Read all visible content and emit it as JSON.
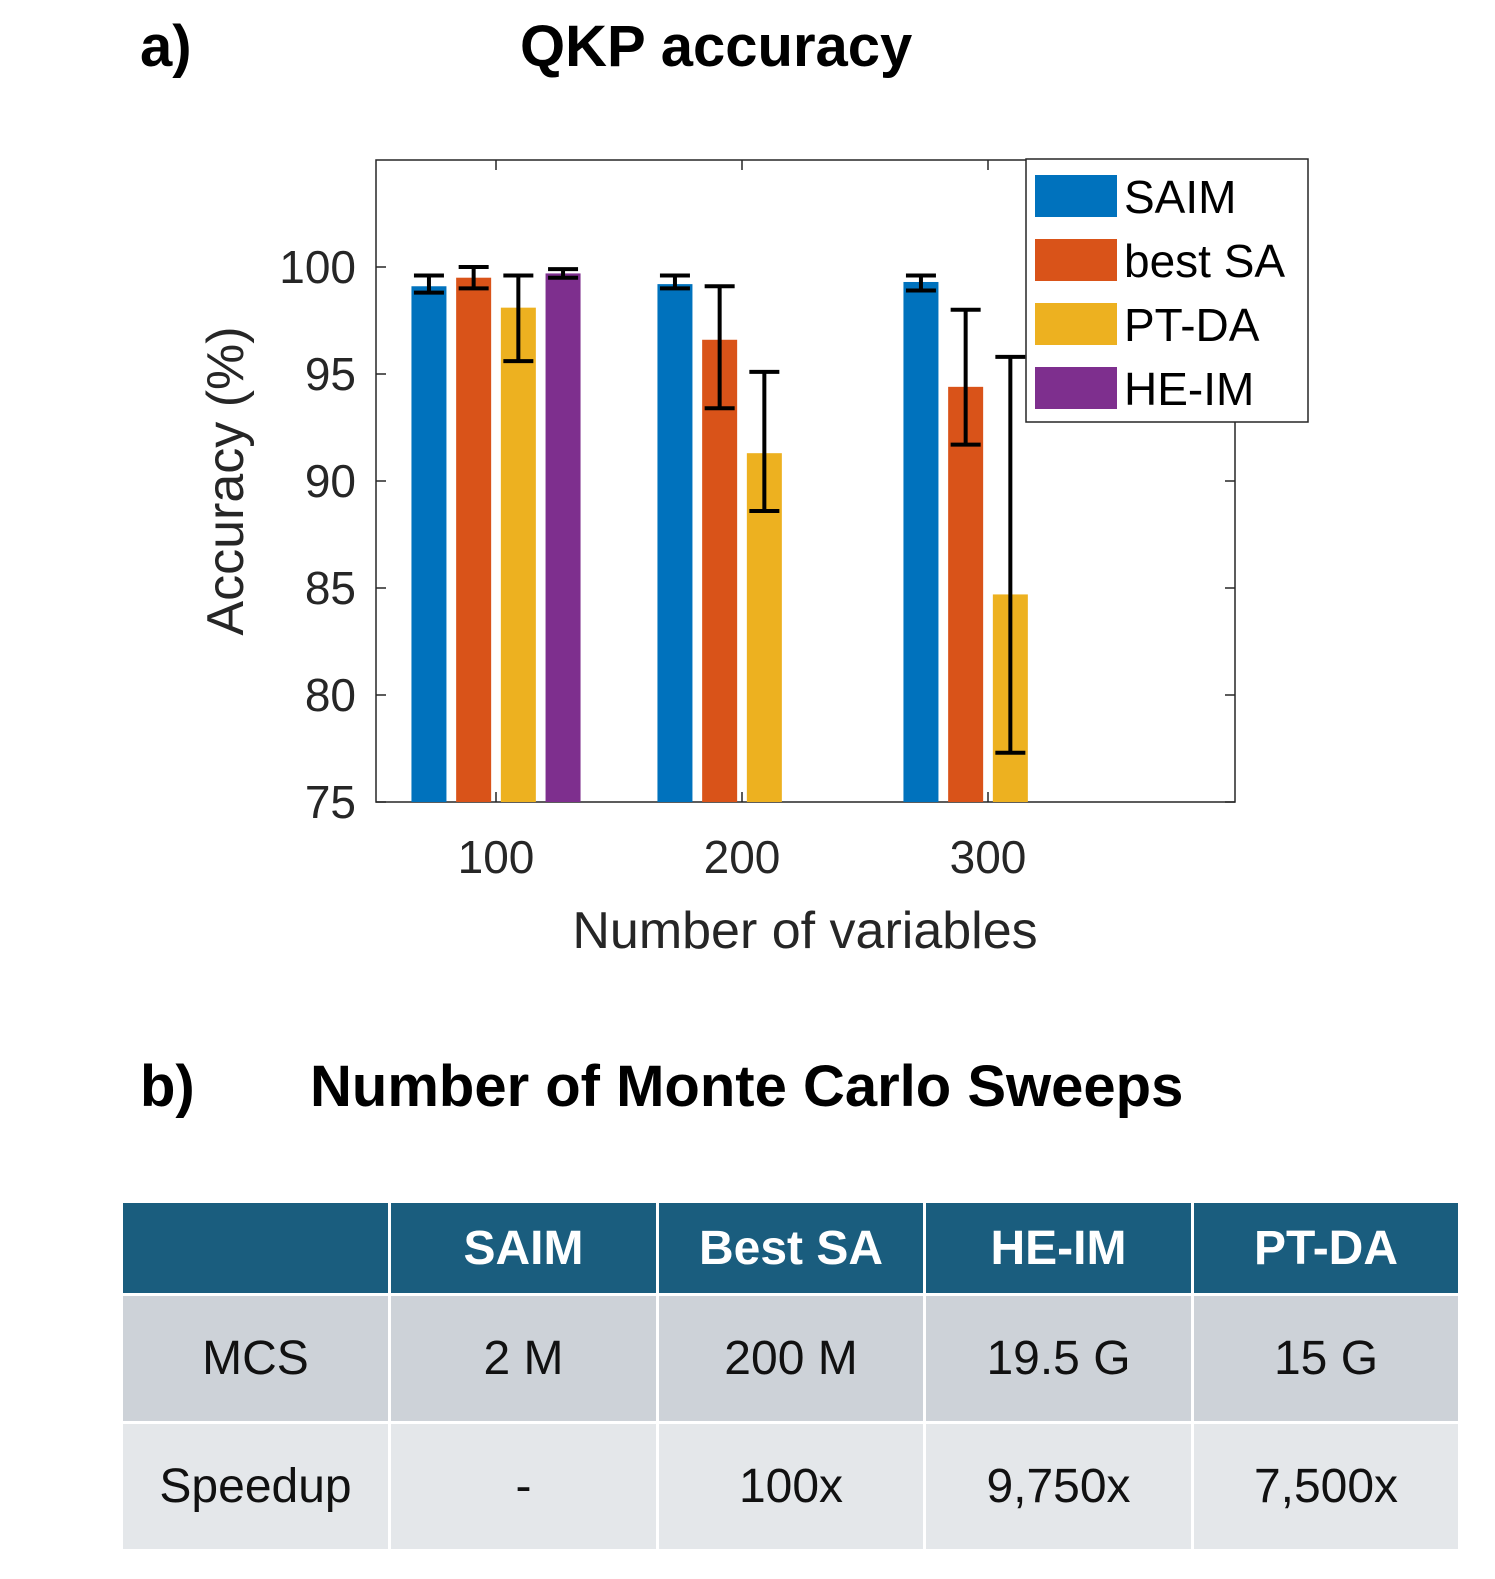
{
  "panel_a": {
    "label": "a)",
    "title": "QKP accuracy"
  },
  "panel_b": {
    "label": "b)",
    "title": "Number of Monte Carlo Sweeps"
  },
  "chart_data": {
    "type": "bar",
    "title": "QKP accuracy",
    "xlabel": "Number of variables",
    "ylabel": "Accuracy (%)",
    "categories": [
      "100",
      "200",
      "300"
    ],
    "ylim": [
      75,
      105
    ],
    "yticks": [
      75,
      80,
      85,
      90,
      95,
      100
    ],
    "grid": false,
    "legend_position": "top-right",
    "series": [
      {
        "name": "SAIM",
        "color": "#0072bd",
        "values": [
          99.1,
          99.2,
          99.3
        ],
        "err_low": [
          98.8,
          99.0,
          98.9
        ],
        "err_high": [
          99.6,
          99.6,
          99.6
        ]
      },
      {
        "name": "best SA",
        "color": "#d95319",
        "values": [
          99.5,
          96.6,
          94.4
        ],
        "err_low": [
          99.0,
          93.4,
          91.7
        ],
        "err_high": [
          100.0,
          99.1,
          98.0
        ]
      },
      {
        "name": "PT-DA",
        "color": "#edb120",
        "values": [
          98.1,
          91.3,
          84.7
        ],
        "err_low": [
          95.6,
          88.6,
          77.3
        ],
        "err_high": [
          99.6,
          95.1,
          95.8
        ]
      },
      {
        "name": "HE-IM",
        "color": "#7e2f8e",
        "values": [
          99.7,
          null,
          null
        ],
        "err_low": [
          99.5,
          null,
          null
        ],
        "err_high": [
          99.9,
          null,
          null
        ]
      }
    ]
  },
  "table": {
    "headers": [
      "",
      "SAIM",
      "Best SA",
      "HE-IM",
      "PT-DA"
    ],
    "rows": [
      {
        "label": "MCS",
        "values": [
          "2 M",
          "200 M",
          "19.5 G",
          "15 G"
        ]
      },
      {
        "label": "Speedup",
        "values": [
          "-",
          "100x",
          "9,750x",
          "7,500x"
        ]
      }
    ]
  }
}
